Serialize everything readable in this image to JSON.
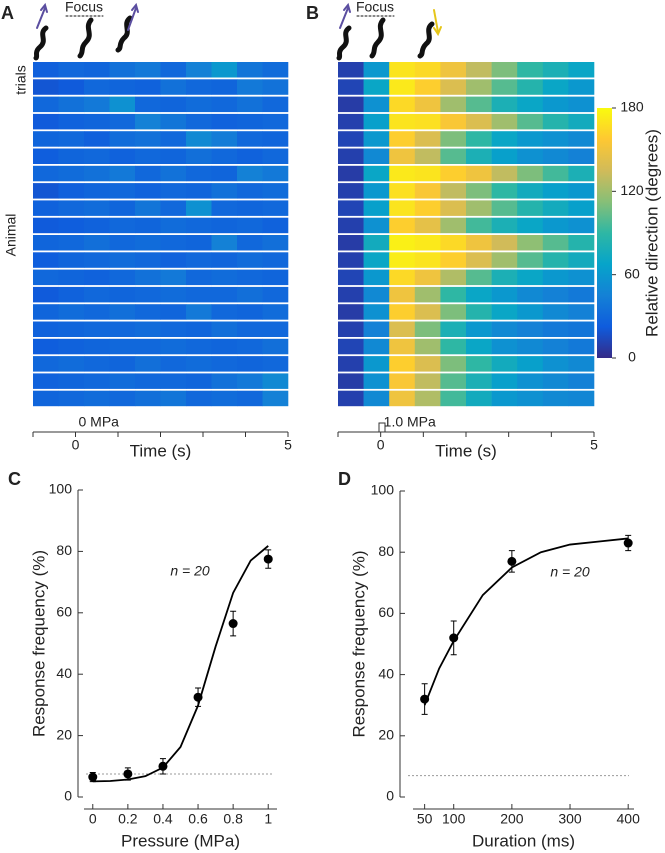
{
  "chart_data": [
    {
      "type": "heatmap",
      "panel": "A",
      "focus": "Focus",
      "row_label": "trials",
      "ylabel": "Animal",
      "stimulus": "0 MPa",
      "xlabel": "Time (s)",
      "xlim": [
        -1,
        5
      ],
      "xticks": [
        0,
        5
      ],
      "xminor": [
        1,
        2,
        3,
        4
      ],
      "clim": [
        0,
        180
      ],
      "values": [
        [
          25,
          30,
          28,
          35,
          40,
          30,
          45,
          60,
          38,
          32
        ],
        [
          20,
          22,
          30,
          28,
          26,
          35,
          30,
          28,
          40,
          36
        ],
        [
          30,
          35,
          40,
          55,
          30,
          28,
          32,
          30,
          35,
          30
        ],
        [
          22,
          26,
          28,
          30,
          45,
          38,
          30,
          26,
          28,
          30
        ],
        [
          28,
          30,
          25,
          32,
          35,
          30,
          50,
          42,
          30,
          28
        ],
        [
          24,
          28,
          30,
          26,
          30,
          28,
          34,
          30,
          26,
          30
        ],
        [
          30,
          32,
          35,
          40,
          30,
          36,
          30,
          28,
          45,
          40
        ],
        [
          20,
          25,
          28,
          30,
          26,
          30,
          28,
          35,
          30,
          32
        ],
        [
          26,
          30,
          32,
          28,
          38,
          30,
          55,
          30,
          28,
          30
        ],
        [
          22,
          24,
          26,
          30,
          28,
          32,
          30,
          28,
          30,
          26
        ],
        [
          28,
          30,
          34,
          30,
          32,
          30,
          28,
          45,
          30,
          34
        ],
        [
          24,
          28,
          30,
          32,
          30,
          26,
          30,
          28,
          32,
          30
        ],
        [
          30,
          28,
          26,
          30,
          35,
          40,
          30,
          32,
          30,
          28
        ],
        [
          22,
          26,
          30,
          28,
          30,
          32,
          30,
          30,
          34,
          30
        ],
        [
          28,
          32,
          30,
          34,
          30,
          28,
          40,
          30,
          28,
          32
        ],
        [
          26,
          28,
          30,
          30,
          32,
          30,
          28,
          34,
          30,
          30
        ],
        [
          24,
          26,
          28,
          30,
          30,
          32,
          30,
          28,
          30,
          34
        ],
        [
          30,
          32,
          30,
          28,
          34,
          30,
          32,
          30,
          28,
          30
        ],
        [
          26,
          28,
          30,
          32,
          30,
          30,
          28,
          35,
          40,
          50
        ],
        [
          28,
          30,
          32,
          30,
          34,
          38,
          30,
          32,
          30,
          45
        ]
      ]
    },
    {
      "type": "heatmap",
      "panel": "B",
      "focus": "Focus",
      "stimulus": "1.0 MPa",
      "xlabel": "Time (s)",
      "xlim": [
        -1,
        5
      ],
      "xticks": [
        0,
        5
      ],
      "xminor": [
        1,
        2,
        3,
        4
      ],
      "clim": [
        0,
        180
      ],
      "colorbar_label": "Relative direction (degrees)",
      "cticks": [
        0,
        60,
        120,
        180
      ],
      "colormap": [
        "#352a87",
        "#0f5cdd",
        "#1481d6",
        "#06a4ca",
        "#2eb7a4",
        "#87bf77",
        "#d1bb59",
        "#fec832",
        "#f9fb0e"
      ],
      "values": [
        [
          10,
          60,
          170,
          165,
          150,
          130,
          110,
          90,
          80,
          70
        ],
        [
          12,
          70,
          172,
          160,
          140,
          120,
          100,
          85,
          70,
          60
        ],
        [
          8,
          55,
          165,
          150,
          120,
          100,
          80,
          70,
          60,
          55
        ],
        [
          10,
          65,
          170,
          168,
          155,
          140,
          120,
          100,
          85,
          75
        ],
        [
          12,
          60,
          160,
          140,
          110,
          90,
          70,
          60,
          55,
          50
        ],
        [
          10,
          50,
          150,
          130,
          100,
          80,
          65,
          55,
          50,
          45
        ],
        [
          8,
          70,
          172,
          170,
          160,
          150,
          130,
          110,
          95,
          80
        ],
        [
          10,
          60,
          168,
          155,
          130,
          110,
          90,
          75,
          65,
          60
        ],
        [
          12,
          65,
          170,
          160,
          140,
          120,
          100,
          85,
          75,
          65
        ],
        [
          10,
          55,
          160,
          145,
          120,
          95,
          80,
          70,
          60,
          55
        ],
        [
          8,
          75,
          175,
          172,
          165,
          150,
          135,
          115,
          100,
          85
        ],
        [
          10,
          70,
          174,
          170,
          160,
          140,
          120,
          100,
          85,
          75
        ],
        [
          12,
          60,
          165,
          150,
          125,
          100,
          80,
          70,
          60,
          55
        ],
        [
          10,
          50,
          150,
          120,
          90,
          70,
          60,
          50,
          45,
          40
        ],
        [
          8,
          55,
          160,
          140,
          110,
          85,
          70,
          60,
          50,
          45
        ],
        [
          10,
          45,
          140,
          110,
          80,
          60,
          50,
          45,
          40,
          38
        ],
        [
          12,
          50,
          150,
          120,
          90,
          70,
          55,
          50,
          45,
          40
        ],
        [
          10,
          60,
          160,
          140,
          110,
          90,
          75,
          65,
          55,
          50
        ],
        [
          8,
          55,
          155,
          130,
          100,
          80,
          65,
          55,
          50,
          45
        ],
        [
          10,
          50,
          150,
          125,
          95,
          75,
          60,
          55,
          50,
          48
        ]
      ]
    },
    {
      "type": "scatter",
      "panel": "C",
      "xlabel": "Pressure (MPa)",
      "ylabel": "Response frequency (%)",
      "annotation": "n = 20",
      "color": "#000000",
      "x": [
        0,
        0.2,
        0.4,
        0.6,
        0.8,
        1
      ],
      "values": [
        6.5,
        7.5,
        10,
        32.5,
        56.5,
        77.5
      ],
      "errors": [
        1.5,
        2,
        2.5,
        3,
        4,
        3
      ],
      "fit": {
        "x": [
          0,
          0.1,
          0.2,
          0.3,
          0.4,
          0.5,
          0.6,
          0.7,
          0.8,
          0.9,
          1
        ],
        "values": [
          5.1,
          5.2,
          5.7,
          6.8,
          9.6,
          16.3,
          29.8,
          49,
          66.5,
          77,
          81.8
        ]
      },
      "baseline": 7.5,
      "xlim": [
        -0.05,
        1.05
      ],
      "ylim": [
        0,
        100
      ],
      "xticks": [
        0,
        0.2,
        0.4,
        0.6,
        0.8,
        1
      ],
      "yticks": [
        0,
        20,
        40,
        60,
        80,
        100
      ]
    },
    {
      "type": "scatter",
      "panel": "D",
      "xlabel": "Duration (ms)",
      "ylabel": "Response frequency (%)",
      "annotation": "n = 20",
      "color": "#000000",
      "x": [
        50,
        100,
        200,
        400
      ],
      "values": [
        32,
        52,
        77,
        83
      ],
      "errors": [
        5,
        5.5,
        3.5,
        2.5
      ],
      "fit": {
        "x": [
          50,
          75,
          100,
          150,
          200,
          250,
          300,
          350,
          400
        ],
        "values": [
          30,
          42,
          51,
          66,
          75,
          80,
          82.5,
          83.5,
          84.5
        ]
      },
      "baseline": 7,
      "xlim": [
        30,
        410
      ],
      "ylim": [
        0,
        100
      ],
      "xticks": [
        50,
        100,
        200,
        300,
        400
      ],
      "yticks": [
        0,
        20,
        40,
        60,
        80,
        100
      ]
    }
  ]
}
